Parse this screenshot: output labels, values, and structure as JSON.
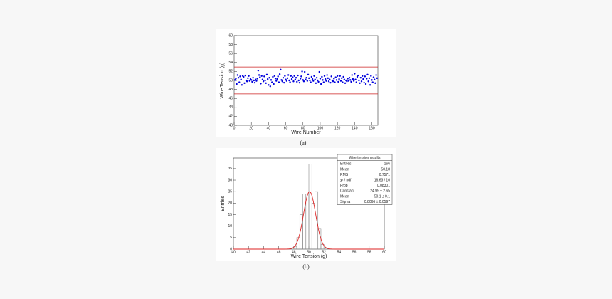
{
  "chart_data": [
    {
      "type": "scatter",
      "caption": "(a)",
      "xlabel": "Wire Number",
      "ylabel": "Wire Tension (g)",
      "color": "#0000dd",
      "xlim": [
        0,
        167
      ],
      "xticks": [
        0,
        20,
        40,
        60,
        80,
        100,
        120,
        140,
        160
      ],
      "ylim": [
        40,
        60
      ],
      "yticks": [
        40,
        42,
        44,
        46,
        48,
        50,
        52,
        54,
        56,
        58,
        60
      ],
      "hlines": [
        {
          "value": 53,
          "color": "#cc2222"
        },
        {
          "value": 47,
          "color": "#cc2222"
        }
      ],
      "x": [
        1,
        2,
        3,
        4,
        5,
        6,
        7,
        8,
        9,
        10,
        11,
        12,
        13,
        14,
        15,
        16,
        17,
        18,
        19,
        20,
        21,
        22,
        23,
        24,
        25,
        26,
        27,
        28,
        29,
        30,
        31,
        32,
        33,
        34,
        35,
        36,
        37,
        38,
        39,
        40,
        41,
        42,
        43,
        44,
        45,
        46,
        47,
        48,
        49,
        50,
        51,
        52,
        53,
        54,
        55,
        56,
        57,
        58,
        59,
        60,
        61,
        62,
        63,
        64,
        65,
        66,
        67,
        68,
        69,
        70,
        71,
        72,
        73,
        74,
        75,
        76,
        77,
        78,
        79,
        80,
        81,
        82,
        83,
        84,
        85,
        86,
        87,
        88,
        89,
        90,
        91,
        92,
        93,
        94,
        95,
        96,
        97,
        98,
        99,
        100,
        101,
        102,
        103,
        104,
        105,
        106,
        107,
        108,
        109,
        110,
        111,
        112,
        113,
        114,
        115,
        116,
        117,
        118,
        119,
        120,
        121,
        122,
        123,
        124,
        125,
        126,
        127,
        128,
        129,
        130,
        131,
        132,
        133,
        134,
        135,
        136,
        137,
        138,
        139,
        140,
        141,
        142,
        143,
        144,
        145,
        146,
        147,
        148,
        149,
        150,
        151,
        152,
        153,
        154,
        155,
        156,
        157,
        158,
        159,
        160,
        161,
        162,
        163,
        164,
        165,
        166
      ],
      "values": [
        50.1,
        50.4,
        49.2,
        51.2,
        50.6,
        49.6,
        50.9,
        50.2,
        49.0,
        51.0,
        50.8,
        49.4,
        51.1,
        50.0,
        49.8,
        50.5,
        51.0,
        49.9,
        50.3,
        50.1,
        49.7,
        50.6,
        50.0,
        49.5,
        50.2,
        49.9,
        50.4,
        52.2,
        51.2,
        50.7,
        49.3,
        51.0,
        50.2,
        49.8,
        50.9,
        50.0,
        49.4,
        51.3,
        50.3,
        49.0,
        50.6,
        48.7,
        50.1,
        49.6,
        50.8,
        49.2,
        51.0,
        50.4,
        49.9,
        50.3,
        50.9,
        49.6,
        51.4,
        52.4,
        50.1,
        49.8,
        50.6,
        49.5,
        51.0,
        50.2,
        49.9,
        50.5,
        51.2,
        50.0,
        49.6,
        51.0,
        50.3,
        50.7,
        49.8,
        51.0,
        50.2,
        50.6,
        49.7,
        51.1,
        50.0,
        49.5,
        50.4,
        50.9,
        52.0,
        50.1,
        49.8,
        51.9,
        50.2,
        50.6,
        49.9,
        51.3,
        50.5,
        50.0,
        49.6,
        50.8,
        50.3,
        49.9,
        51.0,
        50.2,
        49.4,
        50.6,
        50.0,
        49.7,
        51.9,
        50.4,
        49.2,
        50.8,
        50.1,
        49.6,
        51.0,
        50.3,
        49.9,
        51.2,
        50.5,
        49.8,
        50.2,
        49.5,
        50.9,
        50.0,
        49.8,
        50.4,
        49.6,
        50.7,
        50.1,
        51.0,
        49.7,
        50.3,
        51.0,
        49.9,
        50.5,
        49.6,
        50.8,
        50.2,
        49.4,
        50.0,
        49.8,
        50.4,
        49.9,
        50.6,
        50.1,
        49.7,
        51.2,
        50.3,
        49.9,
        51.5,
        50.2,
        49.6,
        50.8,
        51.1,
        50.0,
        49.4,
        50.6,
        49.8,
        51.0,
        50.3,
        49.5,
        50.9,
        49.2,
        50.4,
        51.3,
        49.8,
        50.5,
        49.0,
        51.0,
        50.1,
        49.6,
        50.7,
        50.2,
        49.4,
        51.2,
        50.5
      ]
    },
    {
      "type": "histogram",
      "caption": "(b)",
      "xlabel": "Wire Tension (g)",
      "ylabel": "Entries",
      "color": "#888888",
      "xlim": [
        40,
        60
      ],
      "xticks": [
        40,
        42,
        44,
        46,
        48,
        50,
        52,
        54,
        56,
        58,
        60
      ],
      "ylim": [
        0,
        39.6
      ],
      "yticks": [
        0,
        5,
        10,
        15,
        20,
        25,
        30,
        35
      ],
      "bins": [
        48.0,
        48.4,
        48.8,
        49.2,
        49.6,
        50.0,
        50.4,
        50.8,
        51.2,
        51.6,
        52.0
      ],
      "counts": [
        1,
        5,
        15,
        24,
        24,
        37,
        20,
        25,
        9,
        2
      ],
      "fit": {
        "constant": 24.99,
        "mean": 50.1,
        "sigma": 0.8066,
        "color": "#dd2222"
      },
      "stats": {
        "title": "Wire tension results",
        "rows": [
          [
            "Entries",
            166
          ],
          [
            "Mean",
            50.18
          ],
          [
            "RMS",
            0.7571
          ],
          [
            "χ² / ndf",
            "16.63 / 10"
          ],
          [
            "Prob",
            0.08301
          ],
          [
            "Constant",
            "24.99 ± 2.65"
          ],
          [
            "Mean",
            "50.1 ± 0.1"
          ],
          [
            "Sigma",
            "0.8066 ± 0.0597"
          ]
        ]
      }
    }
  ]
}
